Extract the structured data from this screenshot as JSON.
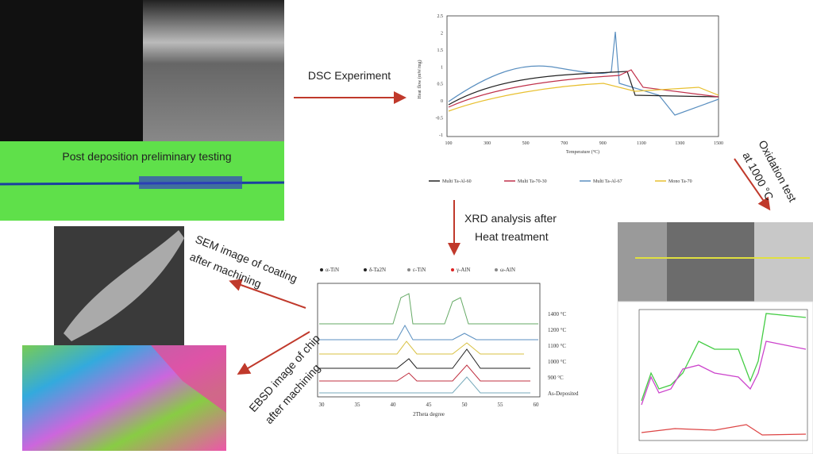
{
  "steps": {
    "deposition": "Post deposition preliminary testing",
    "dsc": "DSC Experiment",
    "xrd": [
      "XRD analysis after",
      "Heat treatment"
    ],
    "oxidation": [
      "Oxidation test",
      "at 1000 °C"
    ],
    "sem": [
      "SEM image of coating",
      "after machining"
    ],
    "ebsd": [
      "EBSD image of chip",
      "after machining"
    ]
  },
  "dsc_plot": {
    "y_label": "Heat flow (mW/mg)",
    "x_label": "Temperature (°C)",
    "y_ticks": [
      "2.5",
      "2",
      "1.5",
      "1",
      "0.5",
      "0",
      "-0.5",
      "-1"
    ],
    "x_ticks": [
      "100",
      "300",
      "500",
      "700",
      "900",
      "1100",
      "1300",
      "1500"
    ],
    "legend": [
      "Multi Ta-Al-60",
      "Multi Ta-70-30",
      "Multi Ta-Al-67",
      "Mono Ta-70"
    ]
  },
  "xrd_plot": {
    "legend": [
      "α-TiN",
      "δ-Ta2N",
      "ε-TiN",
      "γ-AlN",
      "ω-AlN"
    ],
    "temperatures": [
      "1400 °C",
      "1200 °C",
      "1100 °C",
      "1000 °C",
      "900 °C",
      "As-Deposited"
    ],
    "x_label": "2Theta degree",
    "x_ticks": [
      "30",
      "35",
      "40",
      "45",
      "50",
      "55",
      "60"
    ]
  }
}
